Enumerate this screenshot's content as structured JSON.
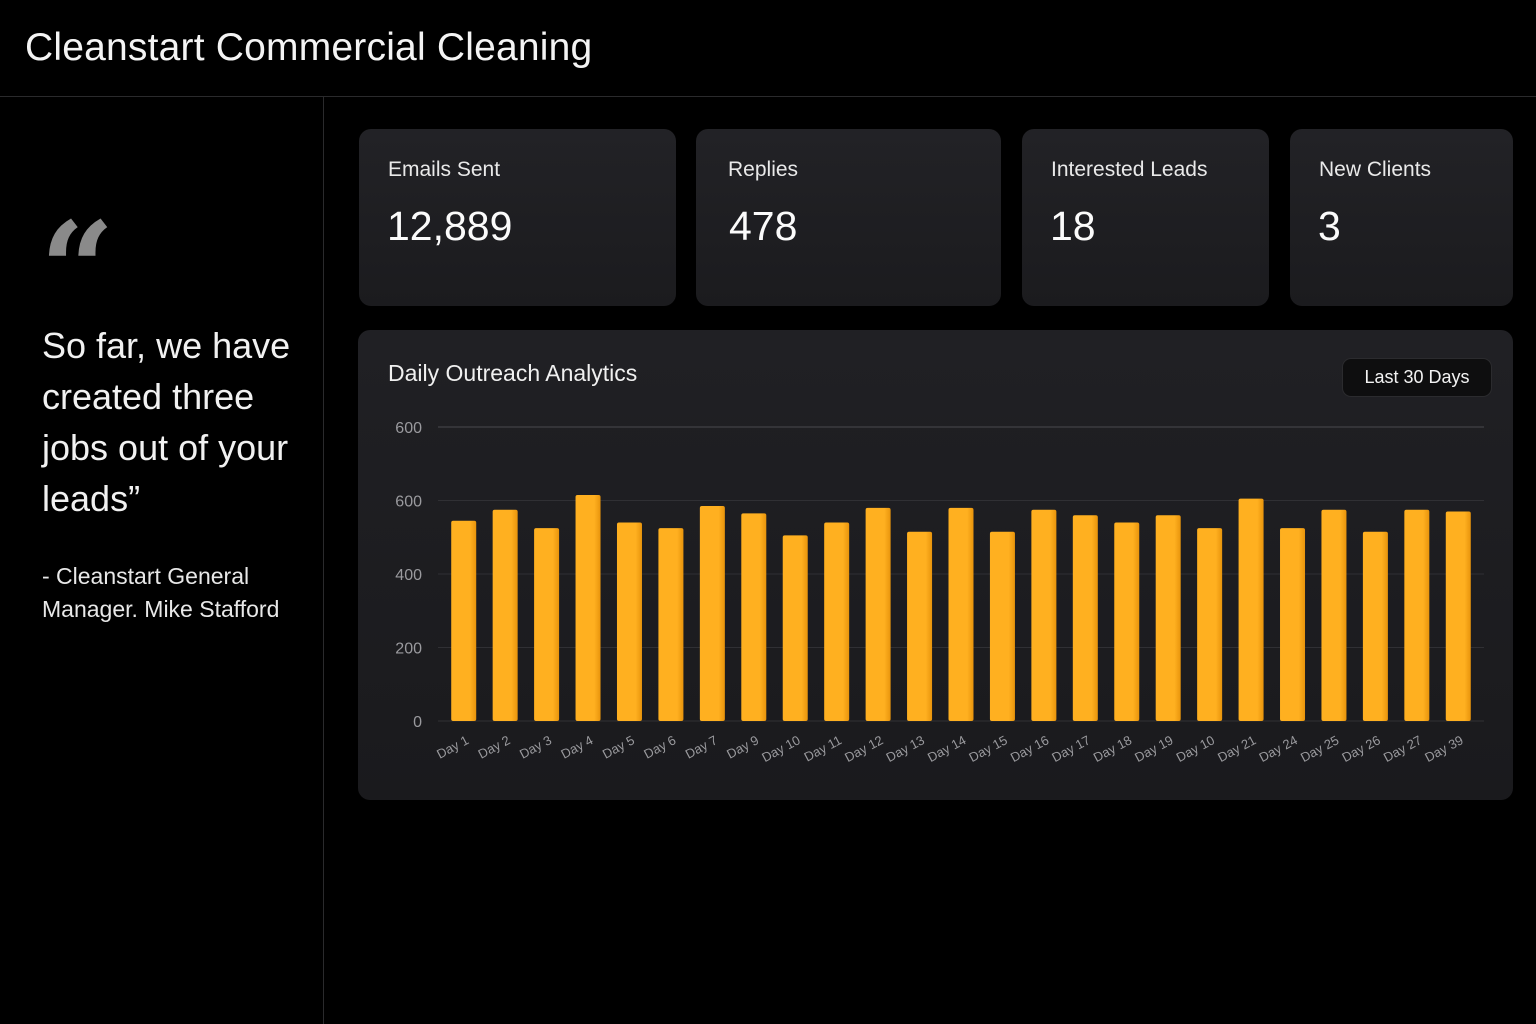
{
  "header": {
    "title": "Cleanstart Commercial Cleaning"
  },
  "testimonial": {
    "mark": "“",
    "text": "So far, we have created three jobs out of your leads”",
    "author": "- Cleanstart General Manager. Mike Stafford"
  },
  "stats": [
    {
      "label": "Emails Sent",
      "value": "12,889"
    },
    {
      "label": "Replies",
      "value": "478"
    },
    {
      "label": "Interested Leads",
      "value": "18"
    },
    {
      "label": "New Clients",
      "value": "3"
    }
  ],
  "analytics": {
    "title": "Daily Outreach Analytics",
    "range_label": "Last 30 Days"
  },
  "colors": {
    "bar": "#FFB020",
    "bar_shade": "#E8940C",
    "background": "#000000",
    "card": "#1E1E22"
  },
  "chart_data": {
    "type": "bar",
    "title": "Daily Outreach Analytics",
    "y_tick_labels": [
      "0",
      "200",
      "400",
      "600",
      "600"
    ],
    "ylim": [
      0,
      800
    ],
    "grid": true,
    "categories": [
      "Day 1",
      "Day 2",
      "Day 3",
      "Day 4",
      "Day 5",
      "Day 6",
      "Day 7",
      "Day 9",
      "Day 10",
      "Day 11",
      "Day 12",
      "Day 13",
      "Day 14",
      "Day 15",
      "Day 16",
      "Day 17",
      "Day 18",
      "Day 19",
      "Day 10",
      "Day 21",
      "Day 24",
      "Day 25",
      "Day 26",
      "Day 27",
      "Day 39"
    ],
    "values": [
      545,
      575,
      525,
      615,
      540,
      525,
      585,
      565,
      505,
      540,
      580,
      515,
      580,
      515,
      575,
      560,
      540,
      560,
      525,
      605,
      525,
      575,
      515,
      575,
      570
    ]
  }
}
